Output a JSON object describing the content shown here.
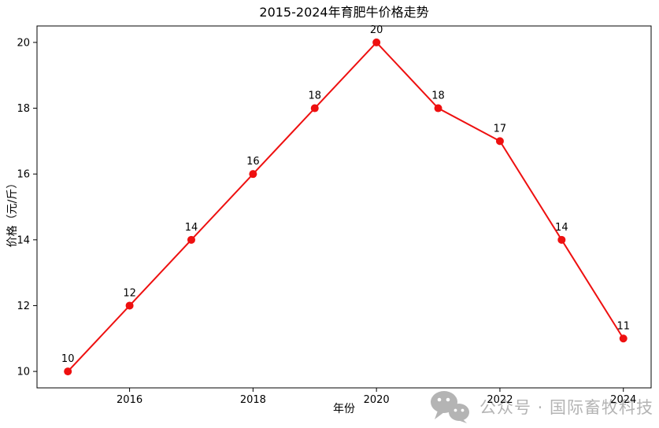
{
  "chart_data": {
    "type": "line",
    "title": "2015-2024年育肥牛价格走势",
    "xlabel": "年份",
    "ylabel": "价格（元/斤）",
    "x": [
      2015,
      2016,
      2017,
      2018,
      2019,
      2020,
      2021,
      2022,
      2023,
      2024
    ],
    "values": [
      10,
      12,
      14,
      16,
      18,
      20,
      18,
      17,
      14,
      11
    ],
    "point_labels": [
      "10",
      "12",
      "14",
      "16",
      "18",
      "20",
      "18",
      "17",
      "14",
      "11"
    ],
    "xtick_values": [
      2016,
      2018,
      2020,
      2022,
      2024
    ],
    "xtick_labels": [
      "2016",
      "2018",
      "2020",
      "2022",
      "2024"
    ],
    "ytick_values": [
      10,
      12,
      14,
      16,
      18,
      20
    ],
    "ytick_labels": [
      "10",
      "12",
      "14",
      "16",
      "18",
      "20"
    ],
    "xlim": [
      2014.5,
      2024.45
    ],
    "ylim": [
      9.5,
      20.5
    ],
    "grid": false,
    "legend": null,
    "line_color": "#ee1010",
    "marker_color": "#ee1010",
    "axis_color": "#000000"
  },
  "watermark": {
    "icon": "wechat-icon",
    "text": "公众号 · 国际畜牧科技",
    "color": "#b4b4b4"
  }
}
